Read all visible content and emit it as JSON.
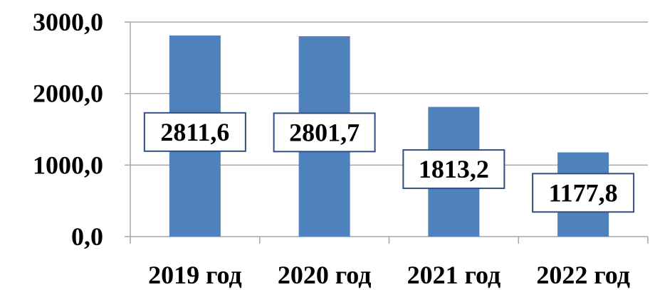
{
  "chart_data": {
    "type": "bar",
    "categories": [
      "2019 год",
      "2020 год",
      "2021 год",
      "2022 год"
    ],
    "values": [
      2811.6,
      2801.7,
      1813.2,
      1177.8
    ],
    "data_labels": [
      "2811,6",
      "2801,7",
      "1813,2",
      "1177,8"
    ],
    "y_ticks": [
      0,
      1000,
      2000,
      3000
    ],
    "y_tick_labels": [
      "0,0",
      "1000,0",
      "2000,0",
      "3000,0"
    ],
    "ylim": [
      0,
      3000
    ],
    "grid": true,
    "legend": "none",
    "title": "",
    "xlabel": "",
    "ylabel": ""
  },
  "colors": {
    "bar": "#4f81bd",
    "gridline": "#a6a6a6",
    "axis": "#a6a6a6",
    "label_border": "#2f4f7f"
  }
}
